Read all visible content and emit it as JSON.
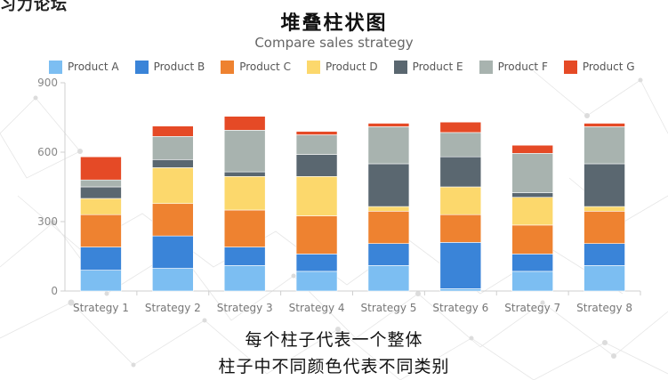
{
  "corner_text": "习力论坛",
  "chart_data": {
    "type": "bar",
    "stacked": true,
    "title": "堆叠柱状图",
    "subtitle": "Compare sales strategy",
    "categories": [
      "Strategy 1",
      "Strategy 2",
      "Strategy 3",
      "Strategy 4",
      "Strategy 5",
      "Strategy 6",
      "Strategy 7",
      "Strategy 8"
    ],
    "series": [
      {
        "name": "Product A",
        "color": "#7cbef2",
        "values": [
          90,
          98,
          110,
          85,
          110,
          10,
          85,
          110
        ]
      },
      {
        "name": "Product B",
        "color": "#3a84d8",
        "values": [
          100,
          140,
          80,
          75,
          95,
          200,
          75,
          95
        ]
      },
      {
        "name": "Product C",
        "color": "#ee8230",
        "values": [
          140,
          140,
          160,
          165,
          140,
          120,
          125,
          140
        ]
      },
      {
        "name": "Product D",
        "color": "#fcd86c",
        "values": [
          70,
          155,
          145,
          170,
          20,
          120,
          120,
          20
        ]
      },
      {
        "name": "Product E",
        "color": "#5a6770",
        "values": [
          50,
          35,
          20,
          95,
          185,
          130,
          20,
          185
        ]
      },
      {
        "name": "Product F",
        "color": "#a8b3af",
        "values": [
          30,
          100,
          180,
          85,
          160,
          105,
          170,
          160
        ]
      },
      {
        "name": "Product G",
        "color": "#e54a26",
        "values": [
          100,
          45,
          60,
          15,
          15,
          45,
          35,
          15
        ]
      }
    ],
    "y_ticks": [
      "0",
      "300",
      "600",
      "900"
    ],
    "ylim": [
      0,
      900
    ],
    "grid": false,
    "legend_position": "top"
  },
  "caption": {
    "line1": "每个柱子代表一个整体",
    "line2": "柱子中不同颜色代表不同类别"
  }
}
